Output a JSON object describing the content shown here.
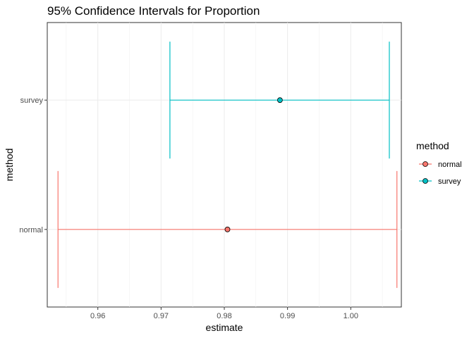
{
  "chart_data": {
    "type": "errorbar",
    "title": "95% Confidence Intervals for Proportion",
    "xlabel": "estimate",
    "ylabel": "method",
    "categories": [
      "normal",
      "survey"
    ],
    "xlim": [
      0.952,
      1.008
    ],
    "x_ticks": [
      0.96,
      0.97,
      0.98,
      0.99,
      1.0
    ],
    "x_tick_labels": [
      "0.96",
      "0.97",
      "0.98",
      "0.99",
      "1.00"
    ],
    "grid": true,
    "legend": {
      "title": "method",
      "placement": "right",
      "entries": [
        {
          "name": "normal",
          "color": "#F8766D"
        },
        {
          "name": "survey",
          "color": "#00BFC4"
        }
      ]
    },
    "series": [
      {
        "name": "normal",
        "estimate": 0.9805,
        "lower": 0.9537,
        "upper": 1.0073,
        "color": "#F8766D"
      },
      {
        "name": "survey",
        "estimate": 0.9888,
        "lower": 0.9714,
        "upper": 1.0061,
        "color": "#00BFC4"
      }
    ]
  }
}
